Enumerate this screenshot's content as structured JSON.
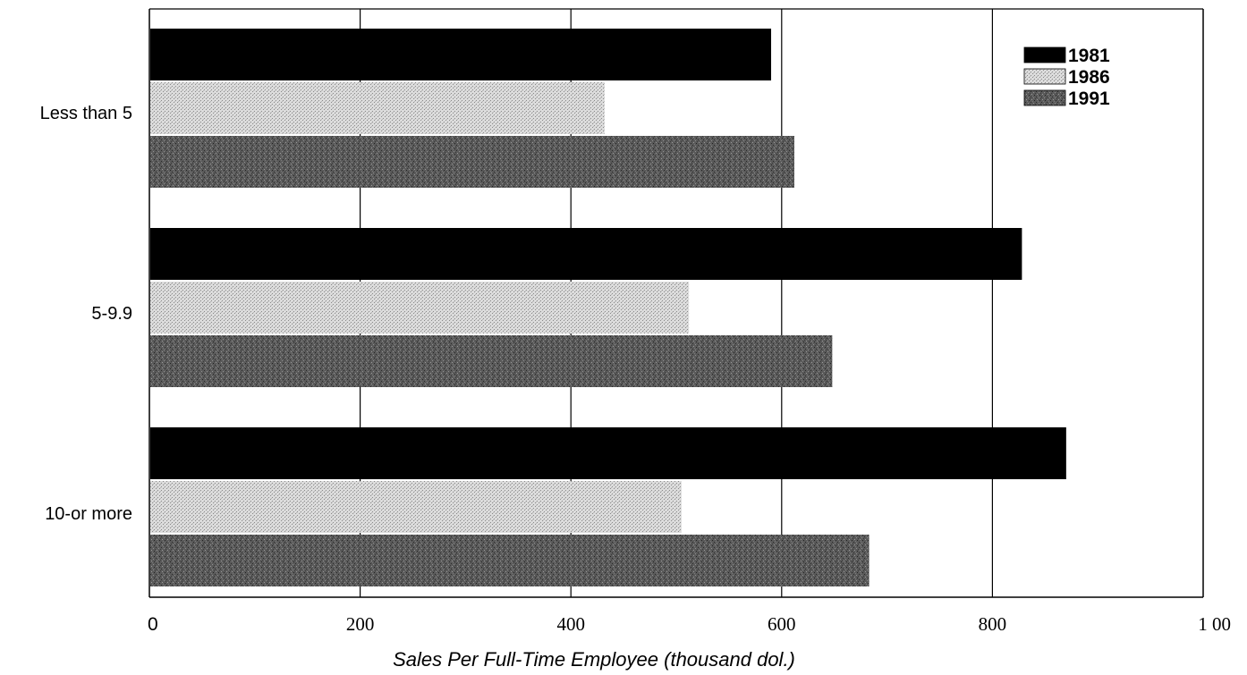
{
  "chart_data": {
    "type": "bar",
    "orientation": "horizontal",
    "title": "",
    "xlabel": "Sales Per Full-Time Employee (thousand dol.)",
    "ylabel": "",
    "xlim": [
      0,
      1000
    ],
    "xticks": [
      0,
      200,
      400,
      600,
      800,
      1000
    ],
    "xtick_labels": [
      "0",
      "200",
      "400",
      "600",
      "800",
      "1 00"
    ],
    "grid": "vertical",
    "legend_position": "top-right",
    "categories": [
      "Less than 5",
      "5-9.9",
      "10-or more"
    ],
    "series": [
      {
        "name": "1981",
        "color": "#000000",
        "fill": "solid-black",
        "values": [
          590,
          828,
          870
        ]
      },
      {
        "name": "1986",
        "color": "#cfcfcf",
        "fill": "light-dotted-gray",
        "values": [
          432,
          512,
          505
        ]
      },
      {
        "name": "1991",
        "color": "#555555",
        "fill": "dark-mottled-gray",
        "values": [
          612,
          648,
          683
        ]
      }
    ]
  }
}
